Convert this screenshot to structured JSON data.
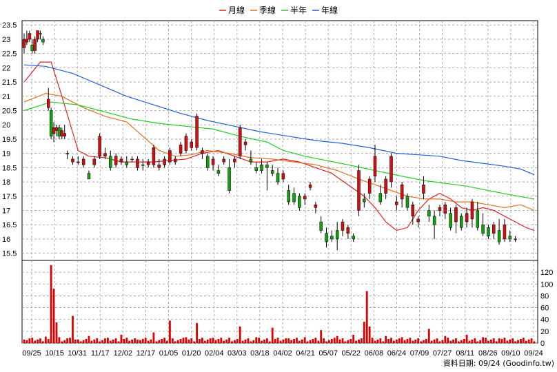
{
  "chart_data": {
    "type": "candlestick+bar",
    "legend": [
      {
        "name": "月線",
        "color": "#dd2222"
      },
      {
        "name": "季線",
        "color": "#e07020"
      },
      {
        "name": "半年",
        "color": "#22cc22"
      },
      {
        "name": "年線",
        "color": "#2060d0"
      }
    ],
    "price_axis": {
      "ylim": [
        15.25,
        23.65
      ],
      "ticks": [
        "23.5",
        "23",
        "22.5",
        "22",
        "21.5",
        "21",
        "20.5",
        "20",
        "19.5",
        "19",
        "18.5",
        "18",
        "17.5",
        "17",
        "16.5",
        "16",
        "15.5"
      ]
    },
    "volume_axis": {
      "ylim": [
        0,
        140
      ],
      "ticks": [
        "120",
        "100",
        "80",
        "60",
        "40",
        "20",
        "0"
      ]
    },
    "x_labels": [
      "09/25",
      "10/15",
      "10/31",
      "11/17",
      "12/02",
      "12/17",
      "01/05",
      "01/20",
      "02/04",
      "03/03",
      "03/18",
      "04/02",
      "04/21",
      "05/07",
      "05/22",
      "06/08",
      "06/24",
      "07/09",
      "07/27",
      "08/11",
      "08/26",
      "09/10",
      "09/24"
    ],
    "ma_lines": {
      "month": [
        [
          0,
          21.5
        ],
        [
          6,
          22.2
        ],
        [
          10,
          22.2
        ],
        [
          14,
          21.0
        ],
        [
          20,
          19.1
        ],
        [
          24,
          18.9
        ],
        [
          30,
          18.85
        ],
        [
          36,
          18.7
        ],
        [
          42,
          18.7
        ],
        [
          48,
          18.7
        ],
        [
          54,
          18.75
        ],
        [
          60,
          18.8
        ],
        [
          66,
          19.0
        ],
        [
          72,
          19.1
        ],
        [
          78,
          18.9
        ],
        [
          84,
          18.7
        ],
        [
          90,
          18.7
        ],
        [
          96,
          18.8
        ],
        [
          102,
          18.7
        ],
        [
          108,
          18.5
        ],
        [
          114,
          18.3
        ],
        [
          120,
          17.9
        ],
        [
          126,
          17.5
        ],
        [
          130,
          17.1
        ],
        [
          134,
          16.6
        ],
        [
          138,
          16.3
        ],
        [
          142,
          16.4
        ],
        [
          146,
          17.0
        ],
        [
          150,
          17.4
        ],
        [
          154,
          17.6
        ],
        [
          158,
          17.4
        ],
        [
          162,
          17.1
        ],
        [
          166,
          17.0
        ],
        [
          170,
          17.1
        ],
        [
          174,
          17.0
        ],
        [
          178,
          16.8
        ],
        [
          182,
          16.6
        ],
        [
          186,
          16.4
        ],
        [
          189,
          16.3
        ]
      ],
      "quarter": [
        [
          0,
          20.8
        ],
        [
          8,
          21.1
        ],
        [
          14,
          21.0
        ],
        [
          22,
          20.6
        ],
        [
          30,
          20.3
        ],
        [
          38,
          20.1
        ],
        [
          44,
          19.6
        ],
        [
          50,
          19.1
        ],
        [
          56,
          18.9
        ],
        [
          62,
          18.95
        ],
        [
          68,
          19.1
        ],
        [
          76,
          19.0
        ],
        [
          84,
          18.85
        ],
        [
          92,
          18.8
        ],
        [
          100,
          18.7
        ],
        [
          108,
          18.6
        ],
        [
          116,
          18.4
        ],
        [
          124,
          18.1
        ],
        [
          130,
          17.9
        ],
        [
          136,
          17.7
        ],
        [
          142,
          17.5
        ],
        [
          148,
          17.4
        ],
        [
          154,
          17.4
        ],
        [
          160,
          17.3
        ],
        [
          166,
          17.3
        ],
        [
          172,
          17.2
        ],
        [
          178,
          17.1
        ],
        [
          184,
          17.2
        ],
        [
          189,
          17.0
        ]
      ],
      "half": [
        [
          0,
          20.5
        ],
        [
          10,
          20.8
        ],
        [
          20,
          20.7
        ],
        [
          30,
          20.45
        ],
        [
          40,
          20.2
        ],
        [
          50,
          20.05
        ],
        [
          60,
          19.95
        ],
        [
          70,
          19.85
        ],
        [
          80,
          19.6
        ],
        [
          90,
          19.4
        ],
        [
          96,
          19.1
        ],
        [
          104,
          18.9
        ],
        [
          112,
          18.75
        ],
        [
          120,
          18.6
        ],
        [
          130,
          18.4
        ],
        [
          140,
          18.2
        ],
        [
          148,
          18.05
        ],
        [
          156,
          17.95
        ],
        [
          164,
          17.85
        ],
        [
          172,
          17.7
        ],
        [
          180,
          17.55
        ],
        [
          189,
          17.4
        ]
      ],
      "year": [
        [
          0,
          22.1
        ],
        [
          8,
          22.05
        ],
        [
          18,
          21.8
        ],
        [
          28,
          21.4
        ],
        [
          38,
          21.0
        ],
        [
          48,
          20.7
        ],
        [
          58,
          20.4
        ],
        [
          68,
          20.15
        ],
        [
          78,
          19.95
        ],
        [
          88,
          19.75
        ],
        [
          98,
          19.6
        ],
        [
          108,
          19.45
        ],
        [
          118,
          19.35
        ],
        [
          128,
          19.2
        ],
        [
          138,
          19.0
        ],
        [
          146,
          18.95
        ],
        [
          154,
          18.9
        ],
        [
          162,
          18.75
        ],
        [
          170,
          18.65
        ],
        [
          178,
          18.55
        ],
        [
          184,
          18.45
        ],
        [
          189,
          18.25
        ]
      ]
    },
    "candles": [
      [
        0,
        22.7,
        23.2,
        22.5,
        23.0
      ],
      [
        1,
        22.9,
        23.3,
        22.8,
        23.0
      ],
      [
        2,
        23.0,
        23.3,
        22.9,
        23.2
      ],
      [
        3,
        22.8,
        23.0,
        22.5,
        22.6
      ],
      [
        4,
        22.6,
        23.1,
        22.5,
        23.0
      ],
      [
        5,
        23.0,
        23.3,
        22.9,
        23.3
      ],
      [
        6,
        23.2,
        23.3,
        23.0,
        23.2
      ],
      [
        7,
        23.0,
        23.1,
        22.8,
        22.9
      ],
      [
        9,
        20.6,
        21.3,
        20.5,
        20.9
      ],
      [
        10,
        20.5,
        20.6,
        19.5,
        19.6
      ],
      [
        11,
        19.7,
        20.1,
        19.4,
        19.9
      ],
      [
        12,
        19.8,
        20.0,
        19.6,
        19.9
      ],
      [
        13,
        19.9,
        20.0,
        19.5,
        19.6
      ],
      [
        14,
        19.6,
        19.9,
        19.5,
        19.8
      ],
      [
        15,
        19.6,
        20.0,
        19.5,
        19.7
      ],
      [
        16,
        19.0,
        19.1,
        18.8,
        19.0
      ],
      [
        18,
        18.7,
        18.9,
        18.6,
        18.8
      ],
      [
        20,
        18.7,
        18.9,
        18.6,
        18.7
      ],
      [
        22,
        18.6,
        18.9,
        18.5,
        18.8
      ],
      [
        24,
        18.3,
        18.4,
        18.1,
        18.1
      ],
      [
        26,
        18.6,
        18.9,
        18.5,
        18.8
      ],
      [
        28,
        18.9,
        19.7,
        18.8,
        19.6
      ],
      [
        30,
        18.9,
        19.2,
        18.8,
        19.0
      ],
      [
        32,
        18.9,
        19.1,
        18.4,
        18.5
      ],
      [
        34,
        18.6,
        19.0,
        18.5,
        18.9
      ],
      [
        36,
        18.7,
        18.9,
        18.6,
        18.8
      ],
      [
        38,
        18.7,
        18.9,
        18.5,
        18.6
      ],
      [
        40,
        18.8,
        18.9,
        18.7,
        18.8
      ],
      [
        42,
        18.5,
        18.9,
        18.4,
        18.8
      ],
      [
        44,
        18.6,
        18.8,
        18.4,
        18.6
      ],
      [
        46,
        18.6,
        18.8,
        18.5,
        18.7
      ],
      [
        48,
        18.6,
        19.3,
        18.5,
        19.2
      ],
      [
        50,
        18.5,
        18.8,
        18.4,
        18.6
      ],
      [
        52,
        18.6,
        18.9,
        18.5,
        18.8
      ],
      [
        54,
        18.7,
        19.2,
        18.6,
        19.1
      ],
      [
        56,
        18.7,
        18.9,
        18.6,
        18.8
      ],
      [
        58,
        19.0,
        19.4,
        18.9,
        19.3
      ],
      [
        60,
        19.1,
        19.7,
        19.0,
        19.6
      ],
      [
        62,
        19.2,
        19.5,
        19.1,
        19.4
      ],
      [
        64,
        19.2,
        20.4,
        19.1,
        20.3
      ],
      [
        66,
        19.0,
        19.2,
        18.8,
        19.1
      ],
      [
        68,
        18.9,
        19.0,
        18.4,
        18.5
      ],
      [
        70,
        18.6,
        18.9,
        18.4,
        18.8
      ],
      [
        72,
        18.4,
        18.6,
        18.2,
        18.3
      ],
      [
        74,
        18.7,
        18.9,
        18.6,
        18.8
      ],
      [
        76,
        18.5,
        18.8,
        17.6,
        17.7
      ],
      [
        78,
        18.7,
        18.9,
        18.5,
        18.8
      ],
      [
        80,
        18.9,
        20.0,
        18.8,
        19.9
      ],
      [
        82,
        19.3,
        19.5,
        19.1,
        19.4
      ],
      [
        84,
        18.8,
        19.1,
        18.6,
        18.7
      ],
      [
        86,
        18.5,
        18.7,
        18.3,
        18.4
      ],
      [
        88,
        18.6,
        18.8,
        18.3,
        18.4
      ],
      [
        90,
        18.6,
        18.7,
        17.7,
        18.5
      ],
      [
        92,
        18.4,
        18.6,
        18.2,
        18.3
      ],
      [
        94,
        18.3,
        18.5,
        17.9,
        18.0
      ],
      [
        96,
        18.1,
        18.4,
        18.0,
        18.3
      ],
      [
        98,
        17.7,
        17.9,
        17.2,
        17.3
      ],
      [
        100,
        17.6,
        17.8,
        17.2,
        17.3
      ],
      [
        102,
        17.5,
        17.6,
        17.0,
        17.1
      ],
      [
        104,
        17.4,
        17.6,
        17.2,
        17.5
      ],
      [
        106,
        17.8,
        18.0,
        17.7,
        17.9
      ],
      [
        108,
        17.1,
        17.3,
        16.9,
        17.2
      ],
      [
        110,
        16.6,
        16.8,
        16.2,
        16.3
      ],
      [
        112,
        16.2,
        16.4,
        15.7,
        15.9
      ],
      [
        114,
        16.1,
        16.3,
        15.9,
        16.0
      ],
      [
        116,
        16.3,
        16.6,
        15.6,
        16.0
      ],
      [
        118,
        16.3,
        16.7,
        16.1,
        16.6
      ],
      [
        120,
        16.2,
        16.5,
        16.0,
        16.4
      ],
      [
        122,
        16.1,
        16.2,
        15.9,
        16.0
      ],
      [
        124,
        17.0,
        18.6,
        16.8,
        18.4
      ],
      [
        126,
        17.4,
        17.6,
        17.1,
        17.3
      ],
      [
        128,
        17.6,
        18.2,
        17.4,
        18.1
      ],
      [
        130,
        18.2,
        19.3,
        18.0,
        18.9
      ],
      [
        132,
        17.6,
        17.9,
        17.2,
        17.3
      ],
      [
        134,
        17.6,
        18.2,
        17.4,
        18.1
      ],
      [
        136,
        18.0,
        19.0,
        17.8,
        18.9
      ],
      [
        138,
        17.2,
        17.5,
        17.0,
        17.3
      ],
      [
        140,
        17.4,
        18.0,
        17.1,
        17.9
      ],
      [
        142,
        17.5,
        17.6,
        17.0,
        17.1
      ],
      [
        144,
        16.8,
        17.3,
        16.5,
        17.2
      ],
      [
        146,
        16.6,
        16.8,
        16.4,
        16.7
      ],
      [
        148,
        17.6,
        18.2,
        17.4,
        17.9
      ],
      [
        150,
        17.0,
        17.2,
        16.6,
        16.8
      ],
      [
        152,
        16.8,
        17.0,
        16.0,
        16.5
      ],
      [
        154,
        17.0,
        17.2,
        16.8,
        17.1
      ],
      [
        156,
        16.9,
        17.3,
        16.7,
        17.2
      ],
      [
        158,
        16.9,
        17.1,
        16.3,
        16.4
      ],
      [
        160,
        16.6,
        17.2,
        16.2,
        17.1
      ],
      [
        162,
        16.8,
        16.9,
        16.3,
        16.4
      ],
      [
        164,
        16.6,
        17.1,
        16.4,
        16.9
      ],
      [
        166,
        16.7,
        17.4,
        16.4,
        17.3
      ],
      [
        168,
        17.0,
        17.3,
        16.3,
        16.4
      ],
      [
        170,
        16.5,
        16.9,
        16.1,
        16.2
      ],
      [
        172,
        16.4,
        16.5,
        16.0,
        16.1
      ],
      [
        174,
        16.2,
        16.6,
        16.0,
        16.5
      ],
      [
        176,
        16.3,
        16.7,
        15.8,
        15.9
      ],
      [
        178,
        16.0,
        16.7,
        15.9,
        16.5
      ],
      [
        180,
        16.1,
        16.3,
        15.9,
        16.0
      ],
      [
        182,
        16.0,
        16.1,
        15.9,
        16.0
      ]
    ],
    "volume_spikes": [
      [
        0,
        6
      ],
      [
        2,
        8
      ],
      [
        4,
        4
      ],
      [
        8,
        11
      ],
      [
        10,
        132
      ],
      [
        11,
        92
      ],
      [
        12,
        35
      ],
      [
        13,
        10
      ],
      [
        16,
        8
      ],
      [
        18,
        46
      ],
      [
        20,
        6
      ],
      [
        24,
        12
      ],
      [
        30,
        8
      ],
      [
        36,
        14
      ],
      [
        42,
        6
      ],
      [
        48,
        18
      ],
      [
        54,
        38
      ],
      [
        60,
        10
      ],
      [
        64,
        34
      ],
      [
        70,
        9
      ],
      [
        76,
        9
      ],
      [
        80,
        28
      ],
      [
        86,
        10
      ],
      [
        92,
        26
      ],
      [
        98,
        8
      ],
      [
        104,
        10
      ],
      [
        110,
        22
      ],
      [
        116,
        12
      ],
      [
        122,
        14
      ],
      [
        126,
        36
      ],
      [
        127,
        88
      ],
      [
        128,
        28
      ],
      [
        134,
        12
      ],
      [
        140,
        10
      ],
      [
        146,
        8
      ],
      [
        150,
        24
      ],
      [
        156,
        12
      ],
      [
        164,
        14
      ],
      [
        170,
        10
      ],
      [
        176,
        8
      ],
      [
        180,
        6
      ]
    ],
    "credit": "資料日期: 09/24  (Goodinfo.tw)"
  }
}
